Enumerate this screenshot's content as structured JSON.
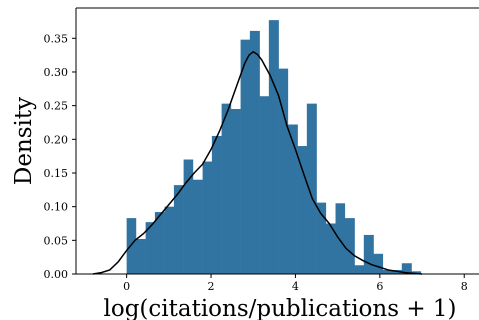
{
  "chart_data": {
    "type": "histogram",
    "title": "",
    "xlabel": "log(citations/publications + 1)",
    "ylabel": "Density",
    "xlim": [
      -1.2,
      8.35
    ],
    "ylim": [
      0,
      0.395
    ],
    "xticks": [
      0,
      2,
      4,
      6,
      8
    ],
    "xtick_labels": [
      "0",
      "2",
      "4",
      "6",
      "8"
    ],
    "yticks": [
      0.0,
      0.05,
      0.1,
      0.15,
      0.2,
      0.25,
      0.3,
      0.35
    ],
    "ytick_labels": [
      "0.00",
      "0.05",
      "0.10",
      "0.15",
      "0.20",
      "0.25",
      "0.30",
      "0.35"
    ],
    "grid": false,
    "bar_color": "#3274a1",
    "line_color": "#000000",
    "bins": [
      {
        "x0": 0.0,
        "x1": 0.22,
        "density": 0.083
      },
      {
        "x0": 0.22,
        "x1": 0.45,
        "density": 0.052
      },
      {
        "x0": 0.45,
        "x1": 0.67,
        "density": 0.077
      },
      {
        "x0": 0.67,
        "x1": 0.9,
        "density": 0.092
      },
      {
        "x0": 0.9,
        "x1": 1.12,
        "density": 0.1
      },
      {
        "x0": 1.12,
        "x1": 1.35,
        "density": 0.132
      },
      {
        "x0": 1.35,
        "x1": 1.57,
        "density": 0.17
      },
      {
        "x0": 1.57,
        "x1": 1.8,
        "density": 0.14
      },
      {
        "x0": 1.8,
        "x1": 2.02,
        "density": 0.167
      },
      {
        "x0": 2.02,
        "x1": 2.25,
        "density": 0.205
      },
      {
        "x0": 2.25,
        "x1": 2.47,
        "density": 0.253
      },
      {
        "x0": 2.47,
        "x1": 2.7,
        "density": 0.245
      },
      {
        "x0": 2.7,
        "x1": 2.92,
        "density": 0.348
      },
      {
        "x0": 2.92,
        "x1": 3.15,
        "density": 0.361
      },
      {
        "x0": 3.15,
        "x1": 3.37,
        "density": 0.264
      },
      {
        "x0": 3.37,
        "x1": 3.6,
        "density": 0.377
      },
      {
        "x0": 3.6,
        "x1": 3.82,
        "density": 0.305
      },
      {
        "x0": 3.82,
        "x1": 4.05,
        "density": 0.222
      },
      {
        "x0": 4.05,
        "x1": 4.27,
        "density": 0.19
      },
      {
        "x0": 4.27,
        "x1": 4.5,
        "density": 0.253
      },
      {
        "x0": 4.5,
        "x1": 4.72,
        "density": 0.106
      },
      {
        "x0": 4.72,
        "x1": 4.95,
        "density": 0.075
      },
      {
        "x0": 4.95,
        "x1": 5.17,
        "density": 0.105
      },
      {
        "x0": 5.17,
        "x1": 5.4,
        "density": 0.083
      },
      {
        "x0": 5.4,
        "x1": 5.62,
        "density": 0.013
      },
      {
        "x0": 5.62,
        "x1": 5.85,
        "density": 0.058
      },
      {
        "x0": 5.85,
        "x1": 6.07,
        "density": 0.03
      },
      {
        "x0": 6.07,
        "x1": 6.3,
        "density": 0.006
      },
      {
        "x0": 6.3,
        "x1": 6.52,
        "density": 0.006
      },
      {
        "x0": 6.52,
        "x1": 6.75,
        "density": 0.016
      },
      {
        "x0": 6.75,
        "x1": 6.97,
        "density": 0.004
      }
    ],
    "kde": {
      "x": [
        -0.8,
        -0.6,
        -0.4,
        -0.2,
        0.0,
        0.2,
        0.4,
        0.6,
        0.8,
        1.0,
        1.2,
        1.4,
        1.6,
        1.8,
        2.0,
        2.2,
        2.4,
        2.6,
        2.8,
        2.9,
        3.0,
        3.1,
        3.2,
        3.4,
        3.6,
        3.8,
        4.0,
        4.2,
        4.4,
        4.6,
        4.8,
        5.0,
        5.2,
        5.4,
        5.6,
        5.8,
        6.0,
        6.2,
        6.4,
        6.6,
        6.8,
        7.0
      ],
      "y": [
        0.0,
        0.002,
        0.006,
        0.018,
        0.035,
        0.05,
        0.06,
        0.073,
        0.088,
        0.103,
        0.118,
        0.135,
        0.15,
        0.163,
        0.185,
        0.212,
        0.243,
        0.278,
        0.313,
        0.325,
        0.33,
        0.326,
        0.318,
        0.295,
        0.265,
        0.22,
        0.185,
        0.148,
        0.112,
        0.09,
        0.075,
        0.055,
        0.038,
        0.027,
        0.02,
        0.014,
        0.01,
        0.006,
        0.004,
        0.002,
        0.001,
        0.0
      ]
    }
  }
}
